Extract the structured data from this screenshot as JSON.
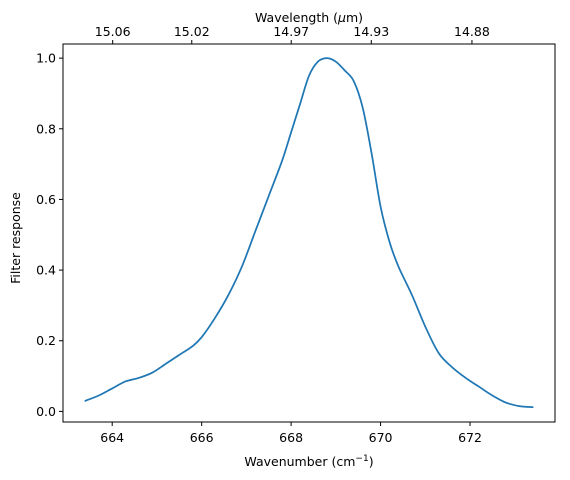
{
  "chart_data": {
    "type": "line",
    "title": "",
    "xlabel": "Wavenumber (cm",
    "xlabel_exponent": "−1",
    "xlabel_suffix": ")",
    "ylabel": "Filter response",
    "top_xlabel": "Wavelength (",
    "top_xlabel_mu": "μ",
    "top_xlabel_suffix": "m)",
    "xlim": [
      662.9,
      673.9
    ],
    "ylim": [
      -0.03,
      1.04
    ],
    "xticks": [
      664,
      666,
      668,
      670,
      672
    ],
    "xtick_labels": [
      "664",
      "666",
      "668",
      "670",
      "672"
    ],
    "yticks": [
      0.0,
      0.2,
      0.4,
      0.6,
      0.8,
      1.0
    ],
    "ytick_labels": [
      "0.0",
      "0.2",
      "0.4",
      "0.6",
      "0.8",
      "1.0"
    ],
    "top_xticks_um": [
      15.06,
      15.02,
      14.97,
      14.93,
      14.88
    ],
    "top_xtick_labels": [
      "15.06",
      "15.02",
      "14.97",
      "14.93",
      "14.88"
    ],
    "grid": false,
    "series": [
      {
        "color": "#1f77b4",
        "x": [
          663.4,
          663.7,
          664.0,
          664.3,
          664.6,
          664.9,
          665.2,
          665.5,
          665.8,
          666.0,
          666.3,
          666.6,
          666.9,
          667.2,
          667.5,
          667.8,
          668.0,
          668.2,
          668.4,
          668.6,
          668.8,
          669.0,
          669.2,
          669.4,
          669.6,
          669.8,
          670.0,
          670.2,
          670.4,
          670.7,
          671.0,
          671.3,
          671.6,
          671.9,
          672.2,
          672.5,
          672.8,
          673.1,
          673.4
        ],
        "y": [
          0.03,
          0.045,
          0.065,
          0.085,
          0.095,
          0.11,
          0.135,
          0.16,
          0.185,
          0.21,
          0.265,
          0.33,
          0.41,
          0.51,
          0.61,
          0.71,
          0.79,
          0.87,
          0.95,
          0.99,
          1.0,
          0.99,
          0.965,
          0.935,
          0.86,
          0.73,
          0.58,
          0.48,
          0.41,
          0.33,
          0.24,
          0.165,
          0.125,
          0.095,
          0.07,
          0.045,
          0.025,
          0.015,
          0.012
        ]
      }
    ]
  }
}
